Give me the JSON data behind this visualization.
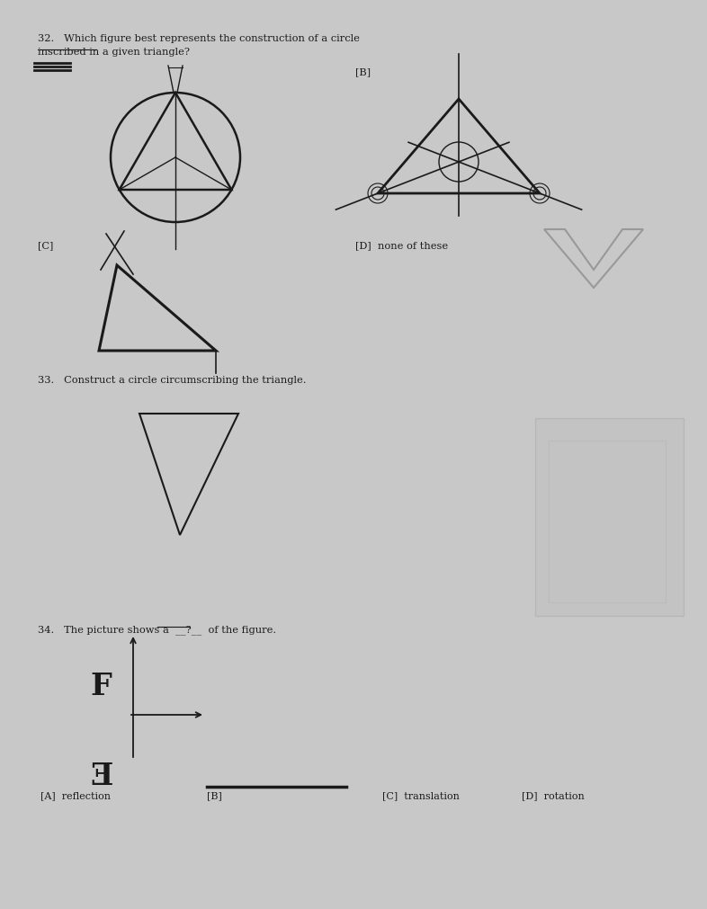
{
  "bg_color": "#c8c8c8",
  "text_color": "#1a1a1a",
  "line_color": "#1a1a1a",
  "q32_text": "32.   Which figure best represents the construction of a circle inscribed in a given triangle?",
  "label_B": "[B]",
  "label_C": "[C]",
  "label_D_none": "[D]  none of these",
  "q33_text": "33.   Construct a circle circumscribing the triangle.",
  "q34_text": "34.   The picture shows a  __?__  of the figure.",
  "ans_A": "[A]  reflection",
  "ans_B": "[B]",
  "ans_C": "[C]  translation",
  "ans_D": "[D]  rotation"
}
